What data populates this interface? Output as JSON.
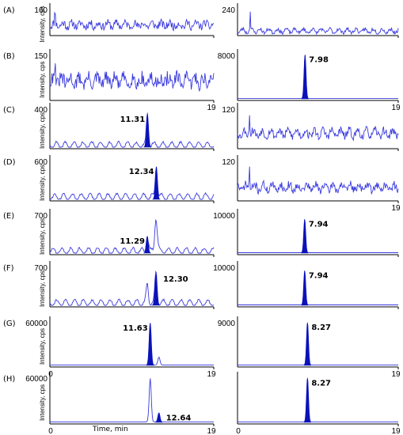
{
  "figure": {
    "x_axis_label": "Time, min",
    "y_axis_label": "Intensity, cps"
  },
  "chart_data": [
    {
      "type": "line",
      "row_label": "(A)",
      "x_range": [
        0,
        19
      ],
      "ymax_label": "160",
      "x_start_label": "",
      "x_end_label": "",
      "peak_label": "",
      "peaks": [],
      "noise": {
        "baseline": 0.35,
        "amp": 0.3,
        "seed": 11,
        "spike_at": 0.6
      }
    },
    {
      "type": "line",
      "row_label": "",
      "x_range": [
        0,
        19
      ],
      "ymax_label": "240",
      "x_start_label": "",
      "x_end_label": "",
      "peak_label": "",
      "peaks": [],
      "noise": {
        "baseline": 0.12,
        "amp": 0.14,
        "seed": 23,
        "spike_at": 1.5
      }
    },
    {
      "type": "line",
      "row_label": "(B)",
      "x_range": [
        0,
        19
      ],
      "ymax_label": "150",
      "x_start_label": "",
      "x_end_label": "19",
      "peak_label": "",
      "peaks": [],
      "noise": {
        "baseline": 0.4,
        "amp": 0.3,
        "seed": 31,
        "spike_at": 0.6
      }
    },
    {
      "type": "line",
      "row_label": "",
      "x_range": [
        0,
        19
      ],
      "ymax_label": "8000",
      "x_start_label": "",
      "x_end_label": "19",
      "peak_label": "7.98",
      "peaks": [
        {
          "x": 7.98,
          "h": 0.97,
          "w": 0.16,
          "filled": true
        }
      ],
      "noise": null
    },
    {
      "type": "line",
      "row_label": "(C)",
      "x_range": [
        0,
        19
      ],
      "ymax_label": "400",
      "x_start_label": "",
      "x_end_label": "",
      "peak_label": "11.31",
      "peaks": [
        {
          "x": 11.31,
          "h": 0.82,
          "w": 0.17,
          "filled": true
        }
      ],
      "noise": {
        "baseline": 0.05,
        "amp": 0.05,
        "seed": 41,
        "spike_at": 0
      }
    },
    {
      "type": "line",
      "row_label": "",
      "x_range": [
        0,
        19
      ],
      "ymax_label": "120",
      "x_start_label": "",
      "x_end_label": "",
      "peak_label": "",
      "peaks": [],
      "noise": {
        "baseline": 0.35,
        "amp": 0.2,
        "seed": 53,
        "spike_at": 1.4
      }
    },
    {
      "type": "line",
      "row_label": "(D)",
      "x_range": [
        0,
        19
      ],
      "ymax_label": "600",
      "x_start_label": "",
      "x_end_label": "",
      "peak_label": "12.34",
      "peaks": [
        {
          "x": 12.34,
          "h": 0.82,
          "w": 0.17,
          "filled": true
        }
      ],
      "noise": {
        "baseline": 0.06,
        "amp": 0.05,
        "seed": 61,
        "spike_at": 0
      }
    },
    {
      "type": "line",
      "row_label": "",
      "x_range": [
        0,
        19
      ],
      "ymax_label": "120",
      "x_start_label": "",
      "x_end_label": "19",
      "peak_label": "",
      "peaks": [],
      "noise": {
        "baseline": 0.3,
        "amp": 0.2,
        "seed": 71,
        "spike_at": 1.4
      }
    },
    {
      "type": "line",
      "row_label": "(E)",
      "x_range": [
        0,
        19
      ],
      "ymax_label": "700",
      "x_start_label": "",
      "x_end_label": "",
      "peak_label": "11.29",
      "peaks": [
        {
          "x": 11.29,
          "h": 0.42,
          "w": 0.17,
          "filled": true
        },
        {
          "x": 12.3,
          "h": 0.85,
          "w": 0.2,
          "filled": false
        }
      ],
      "noise": {
        "baseline": 0.05,
        "amp": 0.05,
        "seed": 81,
        "spike_at": 0
      }
    },
    {
      "type": "line",
      "row_label": "",
      "x_range": [
        0,
        19
      ],
      "ymax_label": "10000",
      "x_start_label": "",
      "x_end_label": "",
      "peak_label": "7.94",
      "peaks": [
        {
          "x": 7.94,
          "h": 0.85,
          "w": 0.16,
          "filled": true
        }
      ],
      "noise": null
    },
    {
      "type": "line",
      "row_label": "(F)",
      "x_range": [
        0,
        19
      ],
      "ymax_label": "700",
      "x_start_label": "",
      "x_end_label": "",
      "peak_label": "12.30",
      "peaks": [
        {
          "x": 11.29,
          "h": 0.48,
          "w": 0.17,
          "filled": false
        },
        {
          "x": 12.3,
          "h": 0.78,
          "w": 0.18,
          "filled": true
        }
      ],
      "noise": {
        "baseline": 0.06,
        "amp": 0.05,
        "seed": 91,
        "spike_at": 0
      }
    },
    {
      "type": "line",
      "row_label": "",
      "x_range": [
        0,
        19
      ],
      "ymax_label": "10000",
      "x_start_label": "",
      "x_end_label": "",
      "peak_label": "7.94",
      "peaks": [
        {
          "x": 7.94,
          "h": 0.87,
          "w": 0.16,
          "filled": true
        }
      ],
      "noise": null
    },
    {
      "type": "line",
      "row_label": "(G)",
      "x_range": [
        0,
        19
      ],
      "ymax_label": "60000",
      "x_start_label": "0",
      "x_end_label": "19",
      "peak_label": "11.63",
      "peaks": [
        {
          "x": 11.63,
          "h": 0.95,
          "w": 0.17,
          "filled": true
        },
        {
          "x": 12.64,
          "h": 0.18,
          "w": 0.17,
          "filled": false
        }
      ],
      "noise": null
    },
    {
      "type": "line",
      "row_label": "",
      "x_range": [
        0,
        19
      ],
      "ymax_label": "9000",
      "x_start_label": "",
      "x_end_label": "19",
      "peak_label": "8.27",
      "peaks": [
        {
          "x": 8.27,
          "h": 0.96,
          "w": 0.16,
          "filled": true
        }
      ],
      "noise": null
    },
    {
      "type": "line",
      "row_label": "(H)",
      "x_range": [
        0,
        19
      ],
      "ymax_label": "60000",
      "x_start_label": "0",
      "x_end_label": "19",
      "peak_label": "12.64",
      "peaks": [
        {
          "x": 11.63,
          "h": 0.95,
          "w": 0.17,
          "filled": false
        },
        {
          "x": 12.64,
          "h": 0.2,
          "w": 0.17,
          "filled": true
        }
      ],
      "noise": null
    },
    {
      "type": "line",
      "row_label": "",
      "x_range": [
        0,
        19
      ],
      "ymax_label": "",
      "x_start_label": "0",
      "x_end_label": "19",
      "peak_label": "8.27",
      "peaks": [
        {
          "x": 8.27,
          "h": 0.96,
          "w": 0.16,
          "filled": true
        }
      ],
      "noise": null
    }
  ]
}
